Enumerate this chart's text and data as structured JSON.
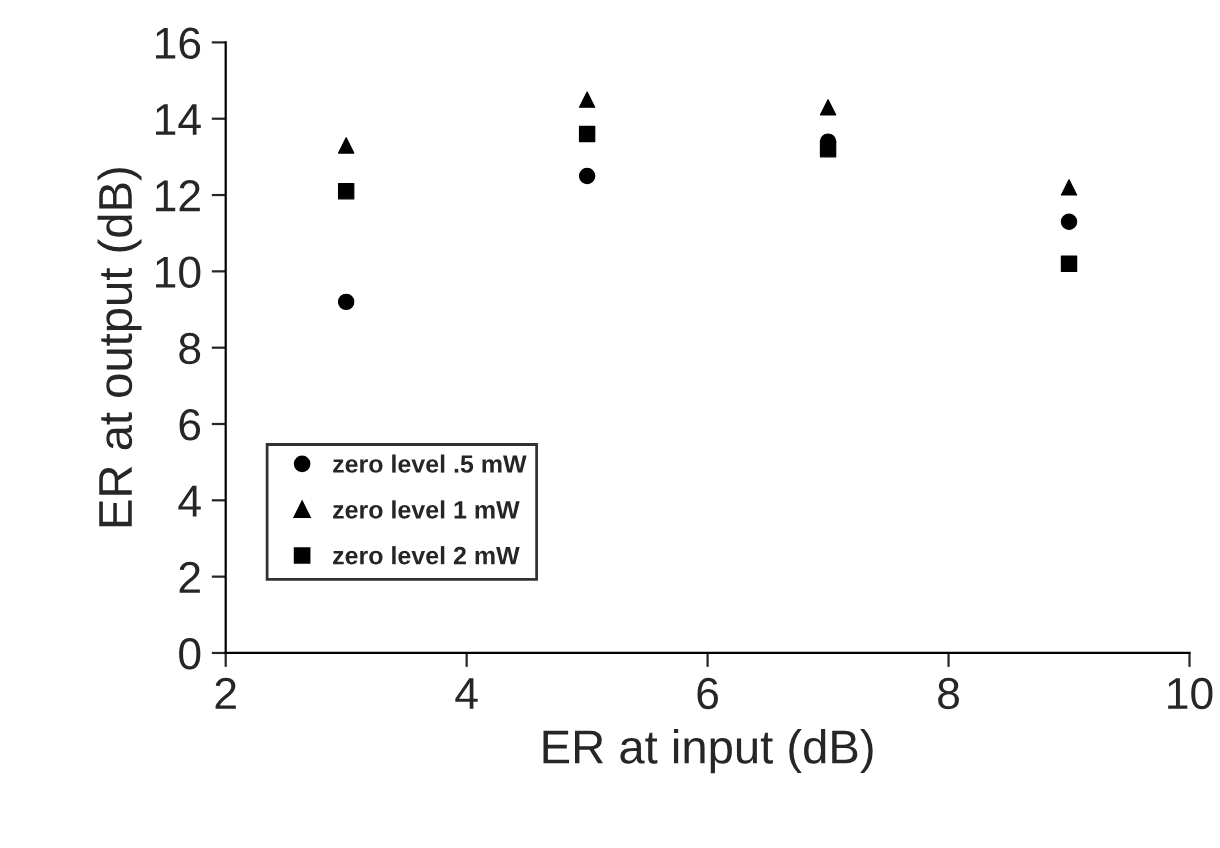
{
  "chart_data": {
    "type": "scatter",
    "xlabel": "ER at input (dB)",
    "ylabel": "ER at output (dB)",
    "xlim": [
      2,
      10
    ],
    "xticks": [
      2,
      4,
      6,
      8,
      10
    ],
    "ylim": [
      0,
      16
    ],
    "yticks": [
      0,
      2,
      4,
      6,
      8,
      10,
      12,
      14,
      16
    ],
    "grid": false,
    "legend": "lower left",
    "series": [
      {
        "name": "zero level .5 mW",
        "color": "#000000",
        "marker": "circle",
        "x": [
          3,
          5,
          7,
          9
        ],
        "values": [
          9.2,
          12.5,
          13.4,
          11.3
        ]
      },
      {
        "name": "zero level 1 mW",
        "color": "#000000",
        "marker": "triangle",
        "x": [
          3,
          5,
          7,
          9
        ],
        "values": [
          13.3,
          14.5,
          14.3,
          12.2
        ]
      },
      {
        "name": "zero level 2 mW",
        "color": "#000000",
        "marker": "square",
        "x": [
          3,
          5,
          7,
          9
        ],
        "values": [
          12.1,
          13.6,
          13.2,
          10.2
        ]
      }
    ]
  }
}
